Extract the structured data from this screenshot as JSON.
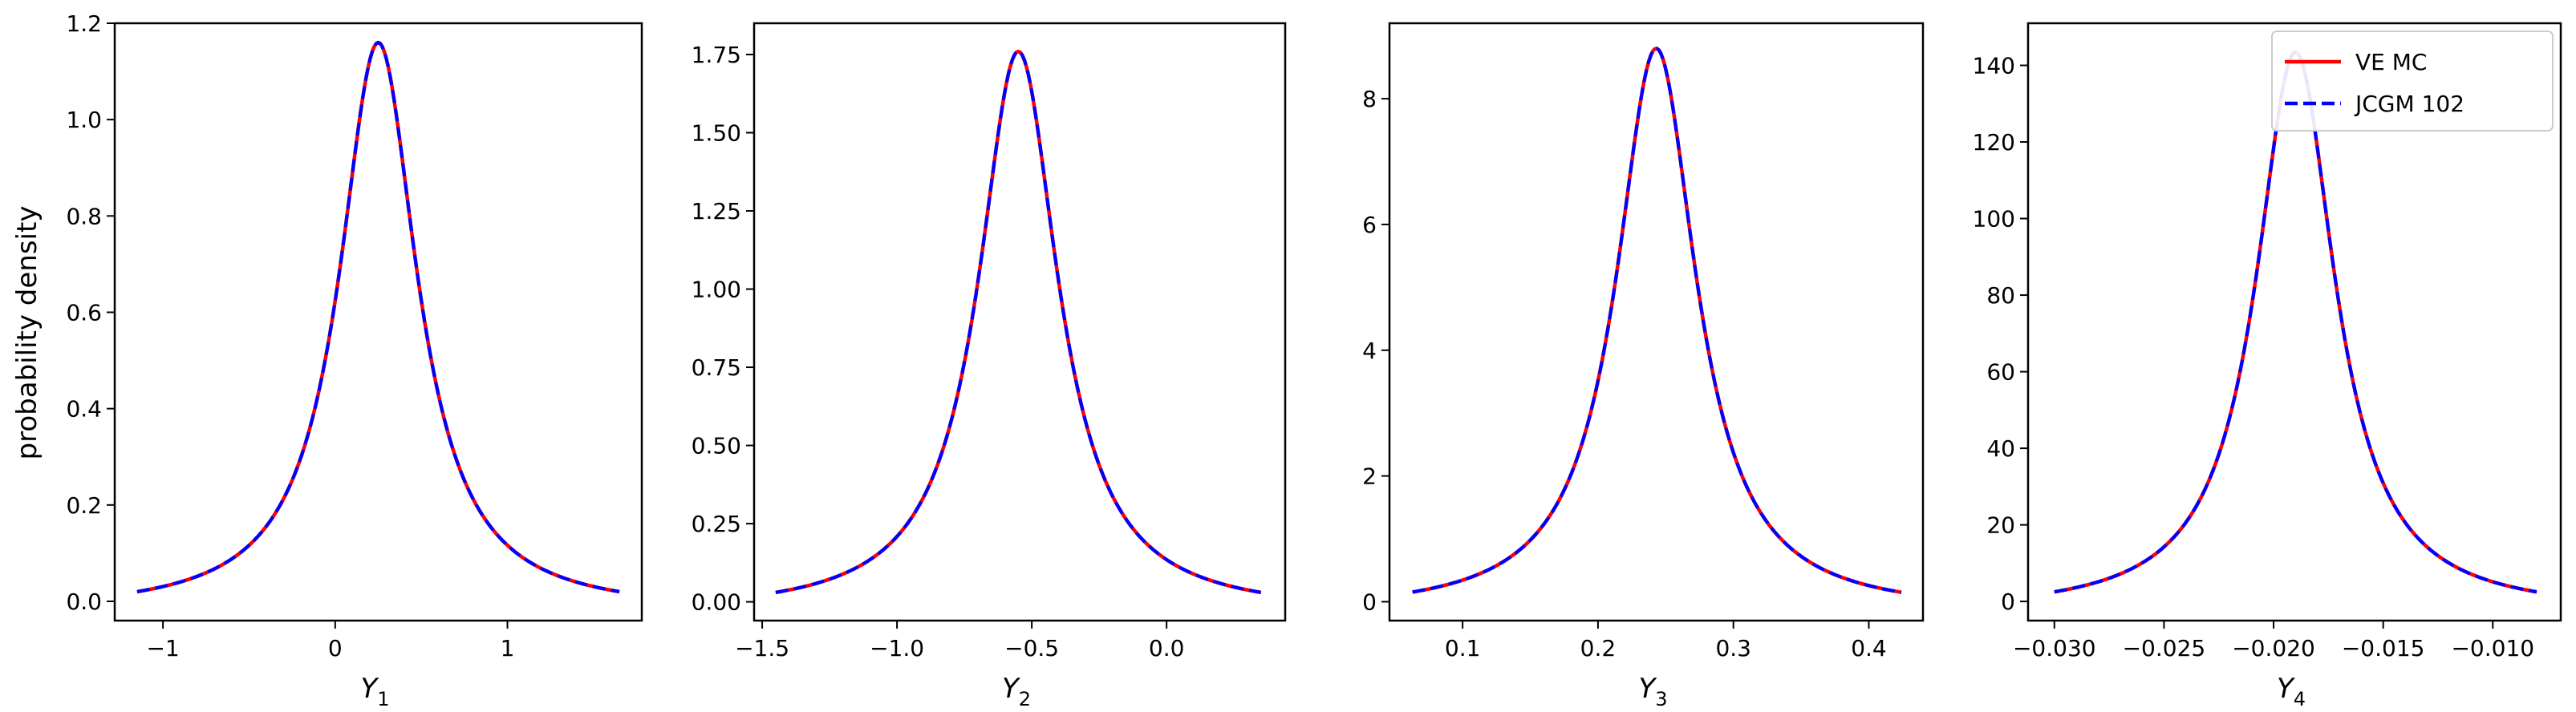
{
  "figure": {
    "ylabel": "probability density",
    "legend": {
      "placement": "upper-right of last panel",
      "entries": [
        {
          "label": "VE MC",
          "color": "#ff0000",
          "style": "solid"
        },
        {
          "label": "JCGM 102",
          "color": "#0000ff",
          "style": "dashed"
        }
      ]
    }
  },
  "chart_data": [
    {
      "type": "line",
      "xlabel_main": "Y",
      "xlabel_sub": "1",
      "ylabel": "probability density",
      "xlim": [
        -1.28,
        1.78
      ],
      "ylim": [
        -0.04,
        1.2
      ],
      "xticks": [
        -1,
        0,
        1
      ],
      "xtick_labels": [
        "−1",
        "0",
        "1"
      ],
      "yticks": [
        0.0,
        0.2,
        0.4,
        0.6,
        0.8,
        1.0,
        1.2
      ],
      "ytick_labels": [
        "0.0",
        "0.2",
        "0.4",
        "0.6",
        "0.8",
        "1.0",
        "1.2"
      ],
      "x_range": [
        -1.15,
        1.65
      ],
      "peak": {
        "x": 0.25,
        "y": 1.16
      },
      "curve": {
        "scale": 0.275,
        "ends_y": 0.02
      },
      "series": [
        {
          "name": "VE MC",
          "color": "#ff0000",
          "style": "solid"
        },
        {
          "name": "JCGM 102",
          "color": "#0000ff",
          "style": "dashed"
        }
      ]
    },
    {
      "type": "line",
      "xlabel_main": "Y",
      "xlabel_sub": "2",
      "xlim": [
        -1.53,
        0.44
      ],
      "ylim": [
        -0.06,
        1.85
      ],
      "xticks": [
        -1.5,
        -1.0,
        -0.5,
        0.0
      ],
      "xtick_labels": [
        "−1.5",
        "−1.0",
        "−0.5",
        "0.0"
      ],
      "yticks": [
        0.0,
        0.25,
        0.5,
        0.75,
        1.0,
        1.25,
        1.5,
        1.75
      ],
      "ytick_labels": [
        "0.00",
        "0.25",
        "0.50",
        "0.75",
        "1.00",
        "1.25",
        "1.50",
        "1.75"
      ],
      "x_range": [
        -1.45,
        0.35
      ],
      "peak": {
        "x": -0.55,
        "y": 1.76
      },
      "curve": {
        "scale": 0.18,
        "ends_y": 0.03
      },
      "series": [
        {
          "name": "VE MC",
          "color": "#ff0000",
          "style": "solid"
        },
        {
          "name": "JCGM 102",
          "color": "#0000ff",
          "style": "dashed"
        }
      ]
    },
    {
      "type": "line",
      "xlabel_main": "Y",
      "xlabel_sub": "3",
      "xlim": [
        0.046,
        0.44
      ],
      "ylim": [
        -0.3,
        9.2
      ],
      "xticks": [
        0.1,
        0.2,
        0.3,
        0.4
      ],
      "xtick_labels": [
        "0.1",
        "0.2",
        "0.3",
        "0.4"
      ],
      "yticks": [
        0,
        2,
        4,
        6,
        8
      ],
      "ytick_labels": [
        "0",
        "2",
        "4",
        "6",
        "8"
      ],
      "x_range": [
        0.063,
        0.424
      ],
      "peak": {
        "x": 0.243,
        "y": 8.8
      },
      "curve": {
        "scale": 0.036,
        "ends_y": 0.15
      },
      "series": [
        {
          "name": "VE MC",
          "color": "#ff0000",
          "style": "solid"
        },
        {
          "name": "JCGM 102",
          "color": "#0000ff",
          "style": "dashed"
        }
      ]
    },
    {
      "type": "line",
      "xlabel_main": "Y",
      "xlabel_sub": "4",
      "xlim": [
        -0.0312,
        -0.0069
      ],
      "ylim": [
        -5,
        151
      ],
      "xticks": [
        -0.03,
        -0.025,
        -0.02,
        -0.015,
        -0.01
      ],
      "xtick_labels": [
        "−0.030",
        "−0.025",
        "−0.020",
        "−0.015",
        "−0.010"
      ],
      "yticks": [
        0,
        20,
        40,
        60,
        80,
        100,
        120,
        140
      ],
      "ytick_labels": [
        "0",
        "20",
        "40",
        "60",
        "80",
        "100",
        "120",
        "140"
      ],
      "x_range": [
        -0.03,
        -0.008
      ],
      "peak": {
        "x": -0.019,
        "y": 143.5
      },
      "curve": {
        "scale": 0.0022,
        "ends_y": 2.5
      },
      "series": [
        {
          "name": "VE MC",
          "color": "#ff0000",
          "style": "solid"
        },
        {
          "name": "JCGM 102",
          "color": "#0000ff",
          "style": "dashed"
        }
      ]
    }
  ]
}
